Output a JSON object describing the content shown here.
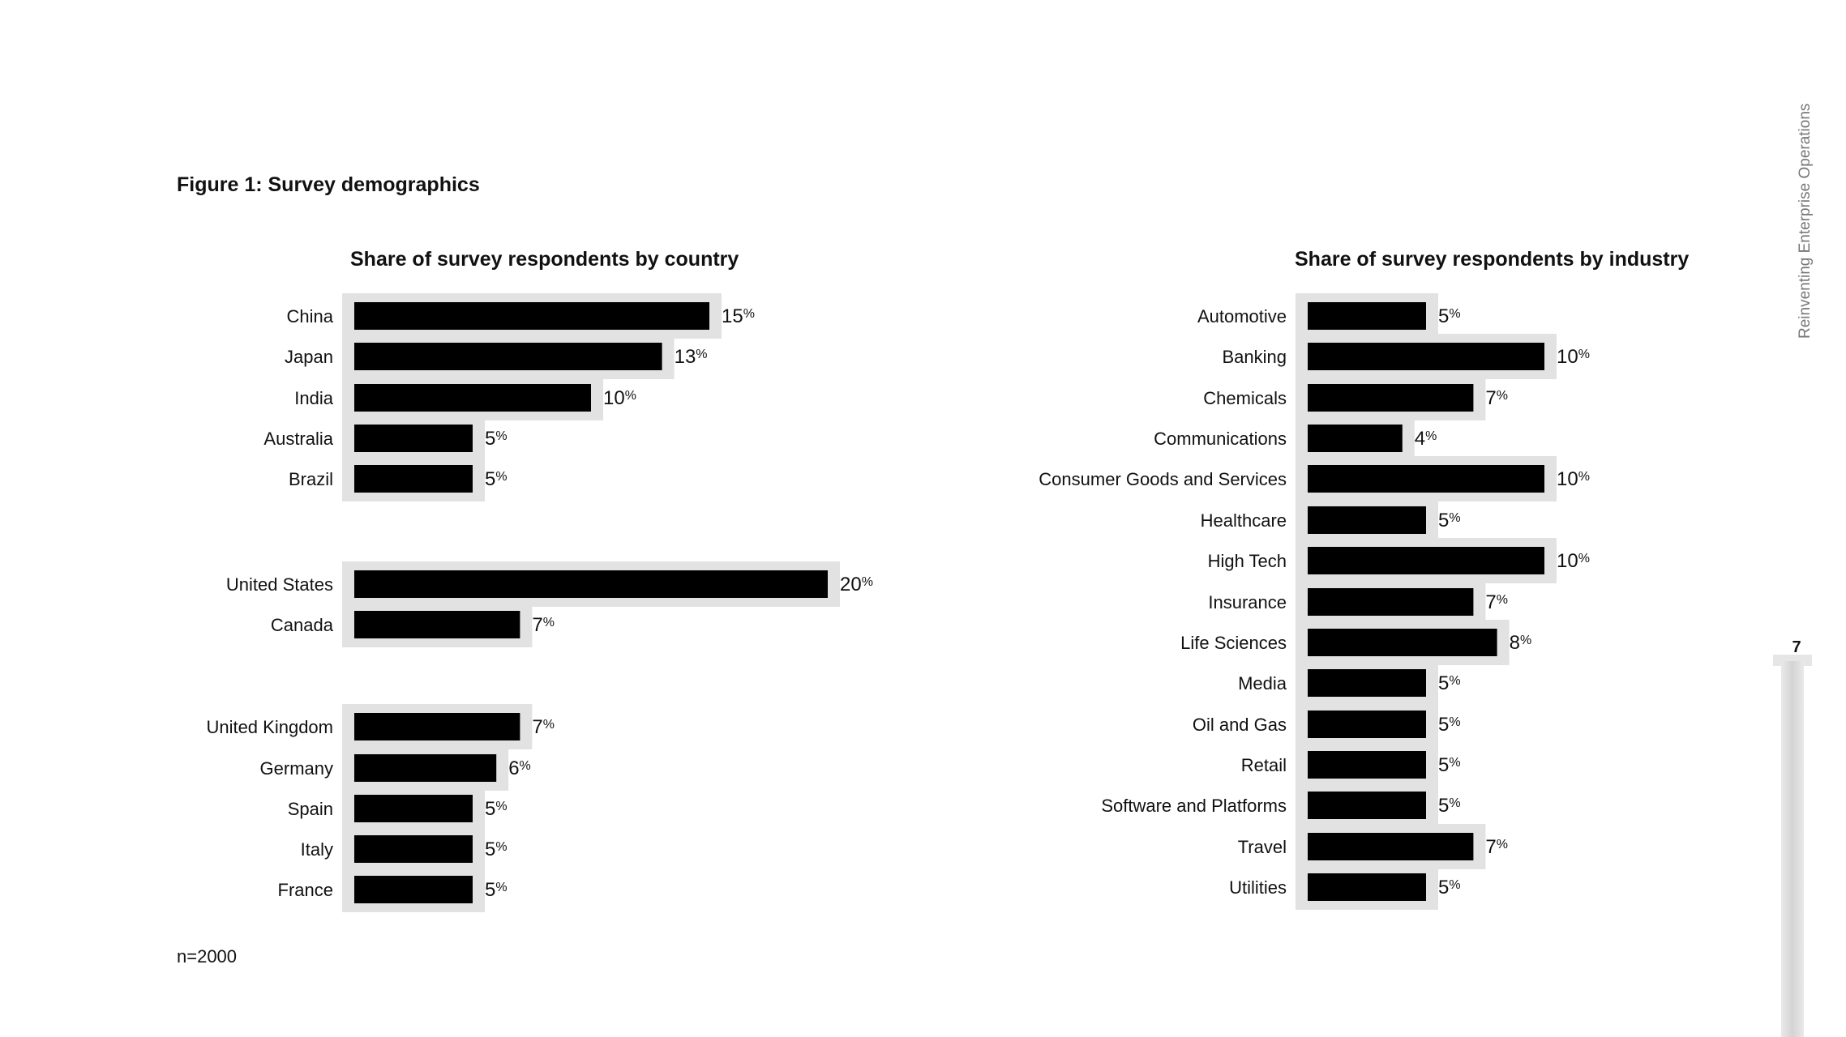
{
  "figure_title": "Figure 1: Survey demographics",
  "footnote": "n=2000",
  "side_title": "Reinventing Enterprise Operations",
  "page_number": "7",
  "colors": {
    "bar": "#000000",
    "bar_shadow": "#e2e2e2",
    "text": "#111111"
  },
  "chart_data": [
    {
      "type": "bar",
      "orientation": "horizontal",
      "title": "Share of survey respondents by country",
      "categories": [
        "China",
        "Japan",
        "India",
        "Australia",
        "Brazil",
        "United States",
        "Canada",
        "United Kingdom",
        "Germany",
        "Spain",
        "Italy",
        "France"
      ],
      "groups": [
        [
          "China",
          "Japan",
          "India",
          "Australia",
          "Brazil"
        ],
        [
          "United States",
          "Canada"
        ],
        [
          "United Kingdom",
          "Germany",
          "Spain",
          "Italy",
          "France"
        ]
      ],
      "values": [
        15,
        13,
        10,
        5,
        5,
        20,
        7.0,
        7,
        6,
        5,
        5,
        5
      ],
      "value_unit": "%",
      "xlabel": "",
      "ylabel": "",
      "grid": false
    },
    {
      "type": "bar",
      "orientation": "horizontal",
      "title": "Share of survey respondents by industry",
      "categories": [
        "Automotive",
        "Banking",
        "Chemicals",
        "Communications",
        "Consumer Goods and Services",
        "Healthcare",
        "High Tech",
        "Insurance",
        "Life Sciences",
        "Media",
        "Oil and Gas",
        "Retail",
        "Software and Platforms",
        "Travel",
        "Utilities"
      ],
      "values": [
        5,
        10,
        7,
        4,
        10,
        5,
        10,
        7,
        8,
        5,
        5,
        5,
        5,
        7,
        5
      ],
      "value_unit": "%",
      "xlabel": "",
      "ylabel": "",
      "grid": false
    }
  ]
}
